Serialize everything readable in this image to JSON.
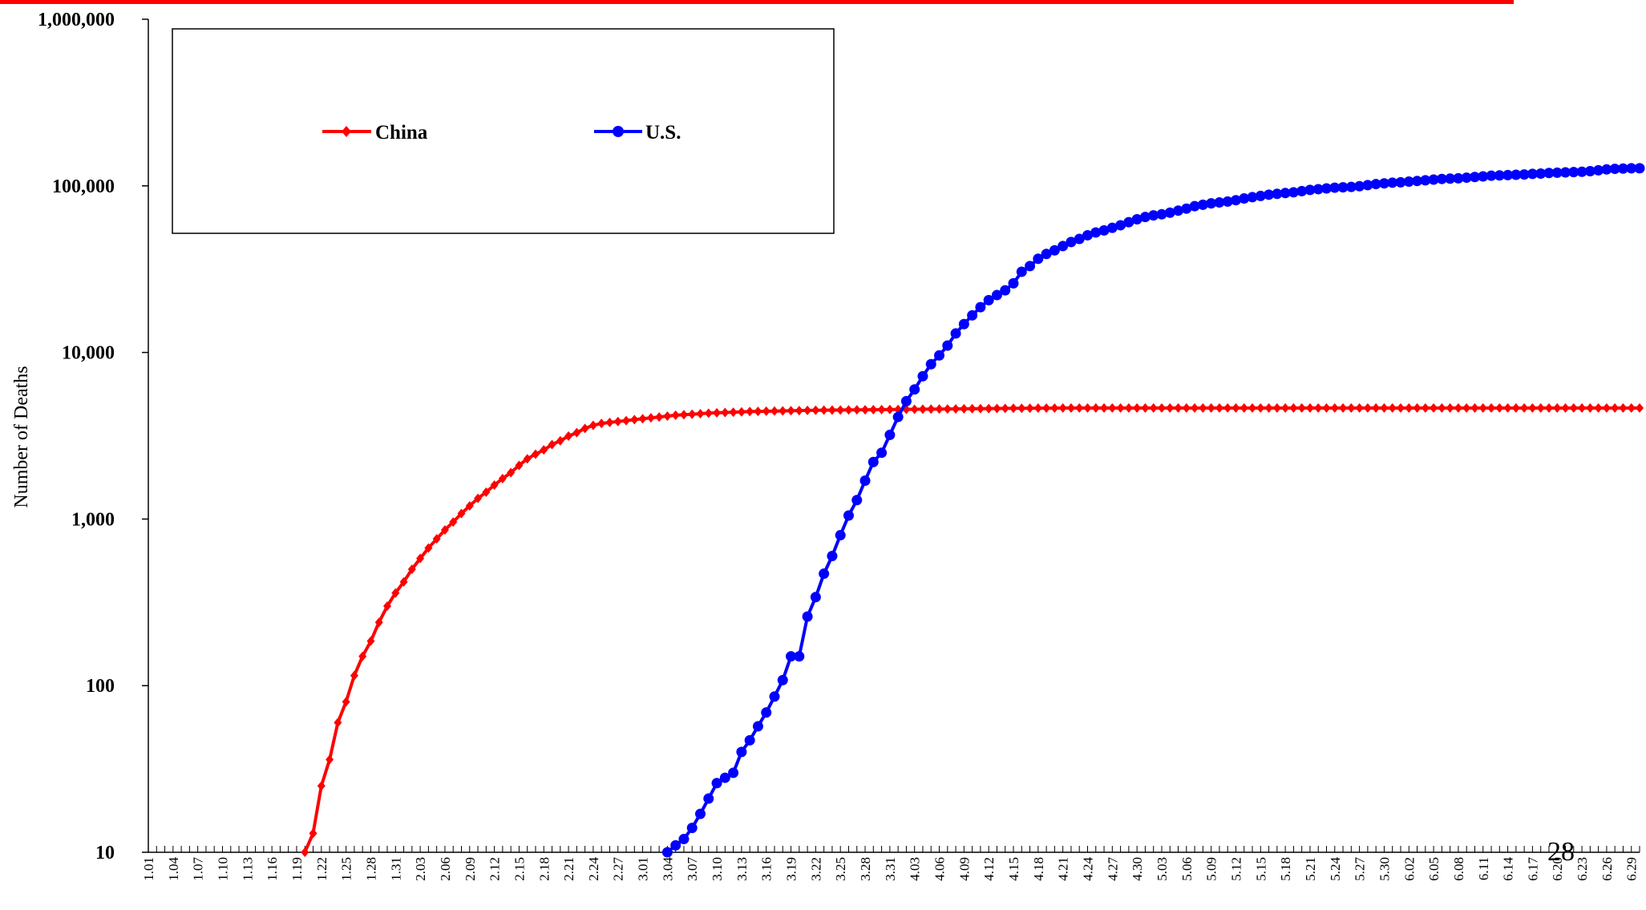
{
  "slide": {
    "number": "28"
  },
  "colors": {
    "china": "#ff0000",
    "us": "#0000ff",
    "axis": "#000000",
    "rule": "#ff0000"
  },
  "chart_data": {
    "type": "line",
    "title": "",
    "xlabel": "",
    "ylabel": "Number of Deaths",
    "yscale": "log",
    "ylim": [
      10,
      1000000
    ],
    "yticks": [
      "10",
      "100",
      "1,000",
      "10,000",
      "100,000",
      "1,000,000"
    ],
    "ytick_values": [
      10,
      100,
      1000,
      10000,
      100000,
      1000000
    ],
    "xrange": [
      "1.01",
      "6.30"
    ],
    "xticks": [
      "1.01",
      "1.04",
      "1.07",
      "1.10",
      "1.13",
      "1.16",
      "1.19",
      "1.22",
      "1.25",
      "1.28",
      "1.31",
      "2.03",
      "2.06",
      "2.09",
      "2.12",
      "2.15",
      "2.18",
      "2.21",
      "2.24",
      "2.27",
      "3.01",
      "3.04",
      "3.07",
      "3.10",
      "3.13",
      "3.16",
      "3.19",
      "3.22",
      "3.25",
      "3.28",
      "3.31",
      "4.03",
      "4.06",
      "4.09",
      "4.12",
      "4.15",
      "4.18",
      "4.21",
      "4.24",
      "4.27",
      "4.30",
      "5.03",
      "5.06",
      "5.09",
      "5.12",
      "5.15",
      "5.18",
      "5.21",
      "5.24",
      "5.27",
      "5.30",
      "6.02",
      "6.05",
      "6.08",
      "6.11",
      "6.14",
      "6.17",
      "6.20",
      "6.23",
      "6.26",
      "6.29"
    ],
    "legend": {
      "placement": "top-left, boxed"
    },
    "series": [
      {
        "name": "China",
        "color": "#ff0000",
        "marker": "diamond",
        "points": [
          [
            "1.20",
            10
          ],
          [
            "1.21",
            13
          ],
          [
            "1.22",
            25
          ],
          [
            "1.23",
            36
          ],
          [
            "1.24",
            60
          ],
          [
            "1.25",
            80
          ],
          [
            "1.26",
            115
          ],
          [
            "1.27",
            150
          ],
          [
            "1.28",
            185
          ],
          [
            "1.29",
            240
          ],
          [
            "1.30",
            300
          ],
          [
            "1.31",
            360
          ],
          [
            "2.01",
            420
          ],
          [
            "2.02",
            500
          ],
          [
            "2.03",
            580
          ],
          [
            "2.04",
            670
          ],
          [
            "2.05",
            760
          ],
          [
            "2.06",
            860
          ],
          [
            "2.07",
            960
          ],
          [
            "2.08",
            1080
          ],
          [
            "2.09",
            1200
          ],
          [
            "2.10",
            1330
          ],
          [
            "2.11",
            1450
          ],
          [
            "2.12",
            1600
          ],
          [
            "2.13",
            1750
          ],
          [
            "2.14",
            1900
          ],
          [
            "2.15",
            2100
          ],
          [
            "2.16",
            2300
          ],
          [
            "2.17",
            2450
          ],
          [
            "2.18",
            2600
          ],
          [
            "2.19",
            2800
          ],
          [
            "2.20",
            2950
          ],
          [
            "2.21",
            3150
          ],
          [
            "2.22",
            3300
          ],
          [
            "2.23",
            3500
          ],
          [
            "2.24",
            3650
          ],
          [
            "2.25",
            3750
          ],
          [
            "2.26",
            3800
          ],
          [
            "2.27",
            3850
          ],
          [
            "2.28",
            3900
          ],
          [
            "2.29",
            3950
          ],
          [
            "3.01",
            4000
          ],
          [
            "3.02",
            4050
          ],
          [
            "3.03",
            4100
          ],
          [
            "3.04",
            4150
          ],
          [
            "3.05",
            4200
          ],
          [
            "3.06",
            4230
          ],
          [
            "3.07",
            4260
          ],
          [
            "3.08",
            4290
          ],
          [
            "3.09",
            4320
          ],
          [
            "3.10",
            4340
          ],
          [
            "3.11",
            4360
          ],
          [
            "3.12",
            4380
          ],
          [
            "3.13",
            4400
          ],
          [
            "3.14",
            4420
          ],
          [
            "3.15",
            4430
          ],
          [
            "3.16",
            4440
          ],
          [
            "3.17",
            4450
          ],
          [
            "3.18",
            4460
          ],
          [
            "3.19",
            4470
          ],
          [
            "3.20",
            4480
          ],
          [
            "3.21",
            4490
          ],
          [
            "3.22",
            4500
          ],
          [
            "3.23",
            4505
          ],
          [
            "3.24",
            4510
          ],
          [
            "3.25",
            4515
          ],
          [
            "3.26",
            4520
          ],
          [
            "3.27",
            4525
          ],
          [
            "3.28",
            4530
          ],
          [
            "3.29",
            4535
          ],
          [
            "3.30",
            4540
          ],
          [
            "3.31",
            4545
          ],
          [
            "4.01",
            4550
          ],
          [
            "4.02",
            4555
          ],
          [
            "4.03",
            4560
          ],
          [
            "4.04",
            4565
          ],
          [
            "4.05",
            4570
          ],
          [
            "4.06",
            4575
          ],
          [
            "4.07",
            4580
          ],
          [
            "4.08",
            4585
          ],
          [
            "4.09",
            4590
          ],
          [
            "4.10",
            4595
          ],
          [
            "4.11",
            4600
          ],
          [
            "4.12",
            4605
          ],
          [
            "4.13",
            4610
          ],
          [
            "4.14",
            4615
          ],
          [
            "4.15",
            4620
          ],
          [
            "4.16",
            4625
          ],
          [
            "4.17",
            4630
          ],
          [
            "4.18",
            4632
          ],
          [
            "4.19",
            4634
          ],
          [
            "4.20",
            4636
          ],
          [
            "4.21",
            4638
          ],
          [
            "4.22",
            4640
          ],
          [
            "4.23",
            4640
          ],
          [
            "4.24",
            4640
          ],
          [
            "4.25",
            4640
          ],
          [
            "4.26",
            4640
          ],
          [
            "4.27",
            4640
          ],
          [
            "4.28",
            4640
          ],
          [
            "4.29",
            4640
          ],
          [
            "4.30",
            4640
          ],
          [
            "5.01",
            4640
          ],
          [
            "5.02",
            4640
          ],
          [
            "5.03",
            4640
          ],
          [
            "5.04",
            4640
          ],
          [
            "5.05",
            4640
          ],
          [
            "5.06",
            4640
          ],
          [
            "5.07",
            4640
          ],
          [
            "5.08",
            4640
          ],
          [
            "5.09",
            4640
          ],
          [
            "5.10",
            4640
          ],
          [
            "5.11",
            4640
          ],
          [
            "5.12",
            4640
          ],
          [
            "5.13",
            4640
          ],
          [
            "5.14",
            4640
          ],
          [
            "5.15",
            4640
          ],
          [
            "5.16",
            4640
          ],
          [
            "5.17",
            4640
          ],
          [
            "5.18",
            4640
          ],
          [
            "5.19",
            4640
          ],
          [
            "5.20",
            4640
          ],
          [
            "5.21",
            4640
          ],
          [
            "5.22",
            4640
          ],
          [
            "5.23",
            4640
          ],
          [
            "5.24",
            4640
          ],
          [
            "5.25",
            4640
          ],
          [
            "5.26",
            4640
          ],
          [
            "5.27",
            4640
          ],
          [
            "5.28",
            4640
          ],
          [
            "5.29",
            4640
          ],
          [
            "5.30",
            4640
          ],
          [
            "5.31",
            4640
          ],
          [
            "6.01",
            4640
          ],
          [
            "6.02",
            4640
          ],
          [
            "6.03",
            4640
          ],
          [
            "6.04",
            4640
          ],
          [
            "6.05",
            4640
          ],
          [
            "6.06",
            4640
          ],
          [
            "6.07",
            4640
          ],
          [
            "6.08",
            4640
          ],
          [
            "6.09",
            4640
          ],
          [
            "6.10",
            4640
          ],
          [
            "6.11",
            4640
          ],
          [
            "6.12",
            4640
          ],
          [
            "6.13",
            4640
          ],
          [
            "6.14",
            4640
          ],
          [
            "6.15",
            4640
          ],
          [
            "6.16",
            4640
          ],
          [
            "6.17",
            4640
          ],
          [
            "6.18",
            4640
          ],
          [
            "6.19",
            4640
          ],
          [
            "6.20",
            4640
          ],
          [
            "6.21",
            4640
          ],
          [
            "6.22",
            4640
          ],
          [
            "6.23",
            4640
          ],
          [
            "6.24",
            4640
          ],
          [
            "6.25",
            4640
          ],
          [
            "6.26",
            4640
          ],
          [
            "6.27",
            4640
          ],
          [
            "6.28",
            4640
          ],
          [
            "6.29",
            4640
          ],
          [
            "6.30",
            4640
          ]
        ]
      },
      {
        "name": "U.S.",
        "color": "#0000ff",
        "marker": "circle",
        "points": [
          [
            "3.04",
            10
          ],
          [
            "3.05",
            11
          ],
          [
            "3.06",
            12
          ],
          [
            "3.07",
            14
          ],
          [
            "3.08",
            17
          ],
          [
            "3.09",
            21
          ],
          [
            "3.10",
            26
          ],
          [
            "3.11",
            28
          ],
          [
            "3.12",
            30
          ],
          [
            "3.13",
            40
          ],
          [
            "3.14",
            47
          ],
          [
            "3.15",
            57
          ],
          [
            "3.16",
            69
          ],
          [
            "3.17",
            86
          ],
          [
            "3.18",
            108
          ],
          [
            "3.19",
            150
          ],
          [
            "3.20",
            150
          ],
          [
            "3.21",
            260
          ],
          [
            "3.22",
            340
          ],
          [
            "3.23",
            470
          ],
          [
            "3.24",
            600
          ],
          [
            "3.25",
            800
          ],
          [
            "3.26",
            1050
          ],
          [
            "3.27",
            1300
          ],
          [
            "3.28",
            1700
          ],
          [
            "3.29",
            2200
          ],
          [
            "3.30",
            2500
          ],
          [
            "3.31",
            3200
          ],
          [
            "4.01",
            4100
          ],
          [
            "4.02",
            5100
          ],
          [
            "4.03",
            6000
          ],
          [
            "4.04",
            7200
          ],
          [
            "4.05",
            8500
          ],
          [
            "4.06",
            9600
          ],
          [
            "4.07",
            11000
          ],
          [
            "4.08",
            13000
          ],
          [
            "4.09",
            14800
          ],
          [
            "4.10",
            16700
          ],
          [
            "4.11",
            18700
          ],
          [
            "4.12",
            20600
          ],
          [
            "4.13",
            22100
          ],
          [
            "4.14",
            23600
          ],
          [
            "4.15",
            26000
          ],
          [
            "4.16",
            30500
          ],
          [
            "4.17",
            33000
          ],
          [
            "4.18",
            36500
          ],
          [
            "4.19",
            39000
          ],
          [
            "4.20",
            41000
          ],
          [
            "4.21",
            43500
          ],
          [
            "4.22",
            46000
          ],
          [
            "4.23",
            48000
          ],
          [
            "4.24",
            50500
          ],
          [
            "4.25",
            52500
          ],
          [
            "4.26",
            54000
          ],
          [
            "4.27",
            56000
          ],
          [
            "4.28",
            58000
          ],
          [
            "4.29",
            60500
          ],
          [
            "4.30",
            63000
          ],
          [
            "5.01",
            65000
          ],
          [
            "5.02",
            66500
          ],
          [
            "5.03",
            67500
          ],
          [
            "5.04",
            69000
          ],
          [
            "5.05",
            71000
          ],
          [
            "5.06",
            73000
          ],
          [
            "5.07",
            75500
          ],
          [
            "5.08",
            77000
          ],
          [
            "5.09",
            78500
          ],
          [
            "5.10",
            79500
          ],
          [
            "5.11",
            80500
          ],
          [
            "5.12",
            82000
          ],
          [
            "5.13",
            84000
          ],
          [
            "5.14",
            85500
          ],
          [
            "5.15",
            87000
          ],
          [
            "5.16",
            88500
          ],
          [
            "5.17",
            89500
          ],
          [
            "5.18",
            90500
          ],
          [
            "5.19",
            91500
          ],
          [
            "5.20",
            93000
          ],
          [
            "5.21",
            94500
          ],
          [
            "5.22",
            95500
          ],
          [
            "5.23",
            96500
          ],
          [
            "5.24",
            97500
          ],
          [
            "5.25",
            98000
          ],
          [
            "5.26",
            98500
          ],
          [
            "5.27",
            99500
          ],
          [
            "5.28",
            101000
          ],
          [
            "5.29",
            102500
          ],
          [
            "5.30",
            103500
          ],
          [
            "5.31",
            104500
          ],
          [
            "6.01",
            105000
          ],
          [
            "6.02",
            106000
          ],
          [
            "6.03",
            107000
          ],
          [
            "6.04",
            108000
          ],
          [
            "6.05",
            109000
          ],
          [
            "6.06",
            110000
          ],
          [
            "6.07",
            110500
          ],
          [
            "6.08",
            111000
          ],
          [
            "6.09",
            112000
          ],
          [
            "6.10",
            113000
          ],
          [
            "6.11",
            114000
          ],
          [
            "6.12",
            115000
          ],
          [
            "6.13",
            115500
          ],
          [
            "6.14",
            116000
          ],
          [
            "6.15",
            116500
          ],
          [
            "6.16",
            117000
          ],
          [
            "6.17",
            118000
          ],
          [
            "6.18",
            118500
          ],
          [
            "6.19",
            119500
          ],
          [
            "6.20",
            120000
          ],
          [
            "6.21",
            120500
          ],
          [
            "6.22",
            121000
          ],
          [
            "6.23",
            121500
          ],
          [
            "6.24",
            122500
          ],
          [
            "6.25",
            124000
          ],
          [
            "6.26",
            125500
          ],
          [
            "6.27",
            126500
          ],
          [
            "6.28",
            127000
          ],
          [
            "6.29",
            127500
          ],
          [
            "6.30",
            127500
          ]
        ]
      }
    ]
  }
}
